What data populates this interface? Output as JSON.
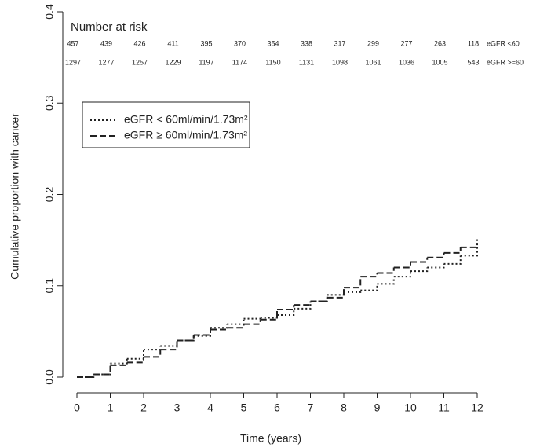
{
  "chart_data": {
    "type": "step",
    "xlabel": "Time (years)",
    "ylabel": "Cumulative proportion with cancer",
    "xlim": [
      0,
      12
    ],
    "ylim": [
      0,
      0.4
    ],
    "xticks": [
      0,
      1,
      2,
      3,
      4,
      5,
      6,
      7,
      8,
      9,
      10,
      11,
      12
    ],
    "yticks": [
      {
        "value": 0,
        "label": "0.0"
      },
      0.1,
      0.2,
      0.3,
      0.4
    ],
    "x": [
      0,
      0.5,
      1,
      1.5,
      2,
      2.5,
      3,
      3.5,
      4,
      4.5,
      5,
      5.5,
      6,
      6.5,
      7,
      7.5,
      8,
      8.5,
      9,
      9.5,
      10,
      10.5,
      11,
      11.5,
      12
    ],
    "series": [
      {
        "name": "eGFR < 60ml/min/1.73m²",
        "color": "#222222",
        "line_style": "dotted",
        "values": [
          0,
          0.003,
          0.015,
          0.02,
          0.03,
          0.034,
          0.04,
          0.045,
          0.054,
          0.058,
          0.064,
          0.065,
          0.068,
          0.075,
          0.083,
          0.09,
          0.093,
          0.095,
          0.102,
          0.11,
          0.116,
          0.12,
          0.124,
          0.133,
          0.153
        ]
      },
      {
        "name": "eGFR ≥ 60ml/min/1.73m²",
        "color": "#222222",
        "line_style": "dashed",
        "values": [
          0,
          0.003,
          0.013,
          0.016,
          0.022,
          0.03,
          0.04,
          0.046,
          0.052,
          0.054,
          0.058,
          0.063,
          0.074,
          0.079,
          0.083,
          0.087,
          0.098,
          0.11,
          0.114,
          0.12,
          0.126,
          0.131,
          0.136,
          0.142,
          0.147
        ]
      }
    ],
    "risk_table": {
      "title": "Number at risk",
      "rows": [
        {
          "label": "eGFR <60",
          "values": [
            457,
            439,
            426,
            411,
            395,
            370,
            354,
            338,
            317,
            299,
            277,
            263,
            118
          ]
        },
        {
          "label": "eGFR >=60",
          "values": [
            1297,
            1277,
            1257,
            1229,
            1197,
            1174,
            1150,
            1131,
            1098,
            1061,
            1036,
            1005,
            543
          ]
        }
      ]
    }
  }
}
